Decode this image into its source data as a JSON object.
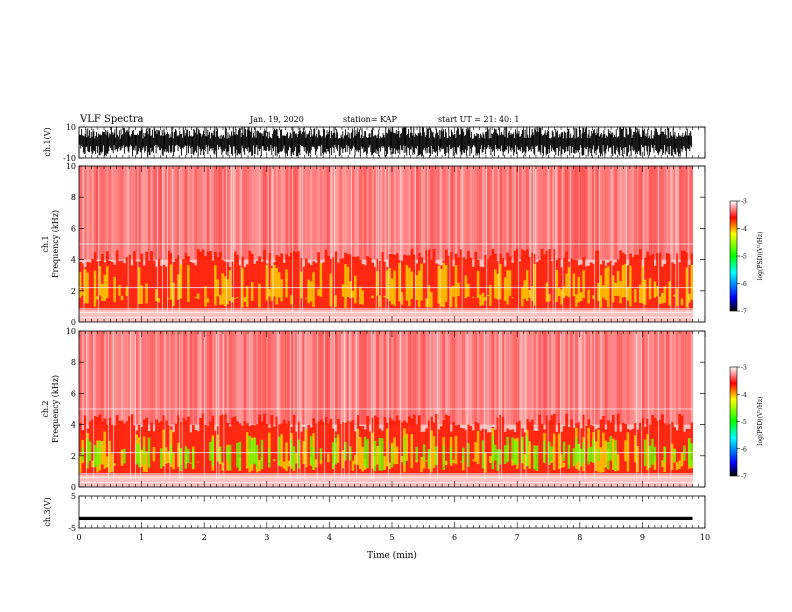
{
  "header": {
    "title": "VLF Spectra",
    "date": "Jan. 19, 2020",
    "station": "station= KAP",
    "start": "start UT =  21: 40: 1"
  },
  "colors": {
    "spectrogram_high": "#ff0000",
    "spectrogram_mid": "#ffff00",
    "spectrogram_low": "#00ff00",
    "trace": "#000000"
  },
  "chart_data": [
    {
      "type": "line",
      "ylabel": "ch.1(V)",
      "ylim": [
        -10,
        10
      ],
      "yticks": [
        "10",
        "-10"
      ],
      "x_range_min": [
        0,
        9.8
      ],
      "band": [
        -9,
        10
      ]
    },
    {
      "type": "heatmap",
      "ylabel_1": "ch.1",
      "ylabel_2": "Frequency (kHz)",
      "ylim": [
        0,
        10
      ],
      "yticks": [
        "10",
        "8",
        "6",
        "4",
        "2",
        "0"
      ],
      "colorbar": {
        "label": "log(PSD)(V²/Hz)",
        "range": [
          -7,
          -3
        ],
        "ticks": [
          "-3",
          "-4",
          "-5",
          "-6",
          "-7"
        ]
      }
    },
    {
      "type": "heatmap",
      "ylabel_1": "ch.2",
      "ylabel_2": "Frequency (kHz)",
      "ylim": [
        0,
        10
      ],
      "yticks": [
        "10",
        "8",
        "6",
        "4",
        "2",
        "0"
      ],
      "colorbar": {
        "label": "log(PSD)(V²/Hz)",
        "range": [
          -7,
          -3
        ],
        "ticks": [
          "-3",
          "-4",
          "-5",
          "-6",
          "-7"
        ]
      }
    },
    {
      "type": "line",
      "ylabel": "ch.3(V)",
      "ylim": [
        -5,
        5
      ],
      "yticks": [
        "5",
        "-5"
      ],
      "band": [
        -2.5,
        -1.5
      ]
    }
  ],
  "xaxis": {
    "label": "Time (min)",
    "range": [
      0,
      10
    ],
    "ticks": [
      "0",
      "1",
      "2",
      "3",
      "4",
      "5",
      "6",
      "7",
      "8",
      "9",
      "10"
    ]
  }
}
